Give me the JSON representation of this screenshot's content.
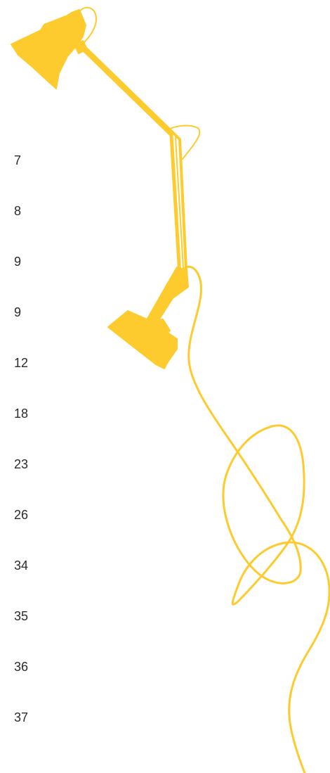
{
  "numbers": [
    "7",
    "8",
    "9",
    "9",
    "12",
    "18",
    "23",
    "26",
    "34",
    "35",
    "36",
    "37"
  ],
  "colors": {
    "lamp": "#FECB2F",
    "text": "#2b2b2b",
    "background": "#ffffff"
  },
  "illustration": {
    "icon": "desk-lamp-icon"
  }
}
